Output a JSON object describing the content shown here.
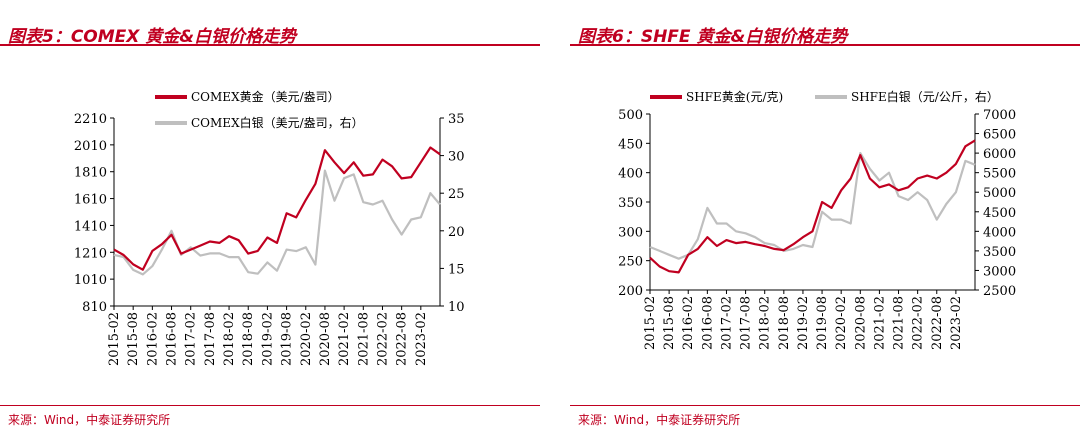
{
  "colors": {
    "accent": "#c00020",
    "gold": "#c00020",
    "silver": "#bfbfbf"
  },
  "panels": [
    {
      "title": "图表5：COMEX 黄金&白银价格走势",
      "source": "来源：Wind，中泰证券研究所"
    },
    {
      "title": "图表6：SHFE 黄金&白银价格走势",
      "source": "来源：Wind，中泰证券研究所"
    }
  ],
  "chart_data": [
    {
      "type": "line",
      "title": "",
      "xlabel": "",
      "ylabel": "",
      "y2label": "",
      "legend_position": "top",
      "grid": false,
      "x_ticks": [
        "2015-02",
        "2015-08",
        "2016-02",
        "2016-08",
        "2017-02",
        "2017-08",
        "2018-02",
        "2018-08",
        "2019-02",
        "2019-08",
        "2020-02",
        "2020-08",
        "2021-02",
        "2021-08",
        "2022-02",
        "2022-08",
        "2023-02"
      ],
      "ylim": [
        810,
        2210
      ],
      "y_ticks": [
        810,
        1010,
        1210,
        1410,
        1610,
        1810,
        2010,
        2210
      ],
      "y2lim": [
        10,
        35
      ],
      "y2_ticks": [
        10,
        15,
        20,
        25,
        30,
        35
      ],
      "series": [
        {
          "name": "COMEX黄金（美元/盎司）",
          "axis": "left",
          "color": "#c00020",
          "x": [
            "2015-02",
            "2015-05",
            "2015-08",
            "2015-11",
            "2016-02",
            "2016-05",
            "2016-08",
            "2016-11",
            "2017-02",
            "2017-05",
            "2017-08",
            "2017-11",
            "2018-02",
            "2018-05",
            "2018-08",
            "2018-11",
            "2019-02",
            "2019-05",
            "2019-08",
            "2019-11",
            "2020-02",
            "2020-05",
            "2020-08",
            "2020-11",
            "2021-02",
            "2021-05",
            "2021-08",
            "2021-11",
            "2022-02",
            "2022-05",
            "2022-08",
            "2022-11",
            "2023-02",
            "2023-05",
            "2023-08"
          ],
          "values": [
            1230,
            1190,
            1120,
            1080,
            1220,
            1270,
            1340,
            1200,
            1230,
            1260,
            1290,
            1280,
            1330,
            1300,
            1200,
            1220,
            1320,
            1280,
            1500,
            1470,
            1600,
            1720,
            1970,
            1880,
            1800,
            1880,
            1780,
            1790,
            1900,
            1850,
            1760,
            1770,
            1880,
            1990,
            1940
          ]
        },
        {
          "name": "COMEX白银（美元/盎司，右）",
          "axis": "right",
          "color": "#bfbfbf",
          "x": [
            "2015-02",
            "2015-05",
            "2015-08",
            "2015-11",
            "2016-02",
            "2016-05",
            "2016-08",
            "2016-11",
            "2017-02",
            "2017-05",
            "2017-08",
            "2017-11",
            "2018-02",
            "2018-05",
            "2018-08",
            "2018-11",
            "2019-02",
            "2019-05",
            "2019-08",
            "2019-11",
            "2020-02",
            "2020-05",
            "2020-08",
            "2020-11",
            "2021-02",
            "2021-05",
            "2021-08",
            "2021-11",
            "2022-02",
            "2022-05",
            "2022-08",
            "2022-11",
            "2023-02",
            "2023-05",
            "2023-08"
          ],
          "values": [
            16.8,
            16.5,
            14.8,
            14.2,
            15.3,
            17.5,
            20.0,
            16.8,
            17.8,
            16.7,
            17.0,
            17.0,
            16.5,
            16.5,
            14.5,
            14.3,
            15.8,
            14.7,
            17.5,
            17.3,
            17.8,
            15.5,
            28.0,
            24.0,
            27.0,
            27.5,
            23.8,
            23.5,
            24.0,
            21.5,
            19.5,
            21.5,
            21.8,
            25.0,
            23.5
          ]
        }
      ]
    },
    {
      "type": "line",
      "title": "",
      "xlabel": "",
      "ylabel": "",
      "y2label": "",
      "legend_position": "top",
      "grid": false,
      "x_ticks": [
        "2015-02",
        "2015-08",
        "2016-02",
        "2016-08",
        "2017-02",
        "2017-08",
        "2018-02",
        "2018-08",
        "2019-02",
        "2019-08",
        "2020-02",
        "2020-08",
        "2021-02",
        "2021-08",
        "2022-02",
        "2022-08",
        "2023-02"
      ],
      "ylim": [
        200,
        500
      ],
      "y_ticks": [
        200,
        250,
        300,
        350,
        400,
        450,
        500
      ],
      "y2lim": [
        2500,
        7000
      ],
      "y2_ticks": [
        2500,
        3000,
        3500,
        4000,
        4500,
        5000,
        5500,
        6000,
        6500,
        7000
      ],
      "series": [
        {
          "name": "SHFE黄金(元/克)",
          "axis": "left",
          "color": "#c00020",
          "x": [
            "2015-02",
            "2015-05",
            "2015-08",
            "2015-11",
            "2016-02",
            "2016-05",
            "2016-08",
            "2016-11",
            "2017-02",
            "2017-05",
            "2017-08",
            "2017-11",
            "2018-02",
            "2018-05",
            "2018-08",
            "2018-11",
            "2019-02",
            "2019-05",
            "2019-08",
            "2019-11",
            "2020-02",
            "2020-05",
            "2020-08",
            "2020-11",
            "2021-02",
            "2021-05",
            "2021-08",
            "2021-11",
            "2022-02",
            "2022-05",
            "2022-08",
            "2022-11",
            "2023-02",
            "2023-05",
            "2023-08"
          ],
          "values": [
            255,
            240,
            232,
            230,
            260,
            270,
            290,
            275,
            285,
            280,
            282,
            278,
            275,
            270,
            268,
            278,
            290,
            300,
            350,
            340,
            370,
            390,
            430,
            390,
            375,
            380,
            370,
            375,
            390,
            395,
            390,
            400,
            415,
            445,
            455
          ]
        },
        {
          "name": "SHFE白银（元/公斤，右）",
          "axis": "right",
          "color": "#bfbfbf",
          "x": [
            "2015-02",
            "2015-05",
            "2015-08",
            "2015-11",
            "2016-02",
            "2016-05",
            "2016-08",
            "2016-11",
            "2017-02",
            "2017-05",
            "2017-08",
            "2017-11",
            "2018-02",
            "2018-05",
            "2018-08",
            "2018-11",
            "2019-02",
            "2019-05",
            "2019-08",
            "2019-11",
            "2020-02",
            "2020-05",
            "2020-08",
            "2020-11",
            "2021-02",
            "2021-05",
            "2021-08",
            "2021-11",
            "2022-02",
            "2022-05",
            "2022-08",
            "2022-11",
            "2023-02",
            "2023-05",
            "2023-08"
          ],
          "values": [
            3600,
            3500,
            3400,
            3300,
            3400,
            3800,
            4600,
            4200,
            4200,
            4000,
            3950,
            3850,
            3700,
            3650,
            3500,
            3550,
            3650,
            3600,
            4500,
            4300,
            4300,
            4200,
            6000,
            5600,
            5300,
            5500,
            4900,
            4800,
            5000,
            4800,
            4300,
            4700,
            5000,
            5800,
            5700
          ]
        }
      ]
    }
  ]
}
